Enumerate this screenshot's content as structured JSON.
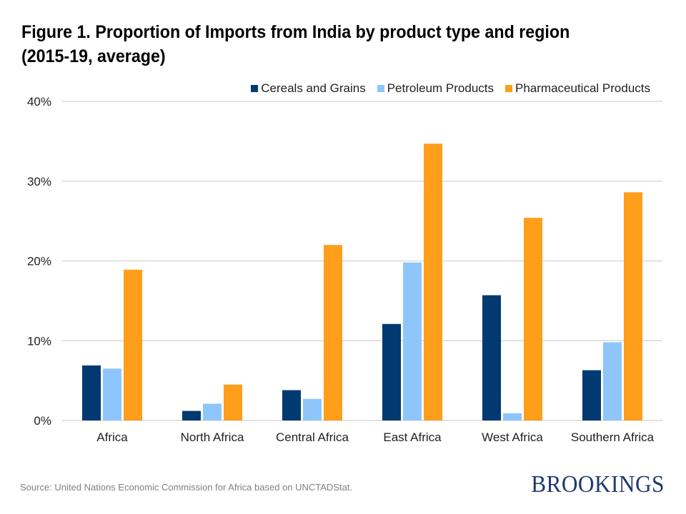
{
  "chart_data": {
    "type": "bar",
    "title": "Figure 1. Proportion of Imports from India by product type and region (2015-19, average)",
    "title_lines": [
      "Figure 1. Proportion of Imports from India by product type and region",
      "(2015-19, average)"
    ],
    "categories": [
      "Africa",
      "North Africa",
      "Central Africa",
      "East Africa",
      "West Africa",
      "Southern Africa"
    ],
    "series": [
      {
        "name": "Cereals and Grains",
        "color": "#003a70",
        "values": [
          6.9,
          1.2,
          3.8,
          12.1,
          15.7,
          6.3
        ]
      },
      {
        "name": "Petroleum Products",
        "color": "#8ec6fb",
        "values": [
          6.5,
          2.1,
          2.7,
          19.8,
          0.9,
          9.8
        ]
      },
      {
        "name": "Pharmaceutical Products",
        "color": "#ff9e1b",
        "values": [
          18.9,
          4.5,
          22.0,
          34.7,
          25.4,
          28.6
        ]
      }
    ],
    "xlabel": "",
    "ylabel": "",
    "ylim": [
      0,
      40
    ],
    "yticks": [
      0,
      10,
      20,
      30,
      40
    ],
    "ytick_labels": [
      "0%",
      "10%",
      "20%",
      "30%",
      "40%"
    ],
    "grid": true,
    "legend_position": "top-right",
    "unit": "%"
  },
  "footer": {
    "source": "Source: United Nations Economic Commission for Africa based on UNCTADStat.",
    "brand": "BROOKINGS"
  },
  "colors": {
    "gridline": "#d9d9d9",
    "tick_text": "#222222",
    "brand": "#1f3a6e"
  }
}
